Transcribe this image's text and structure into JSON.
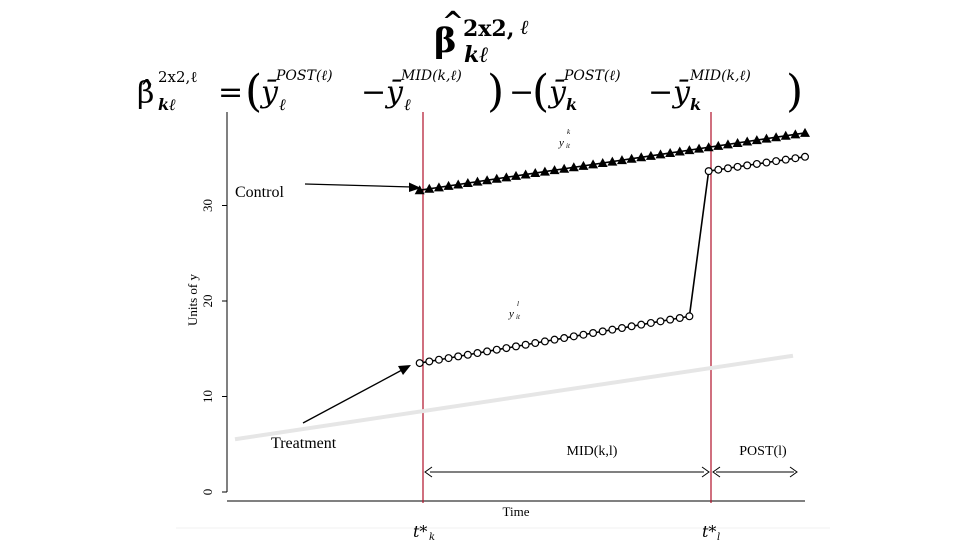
{
  "slide": {
    "title_parts": {
      "beta": "β",
      "hat": "̂",
      "sup": "2x2,",
      "ell": "ℓ",
      "sub": "kℓ"
    },
    "formula": {
      "lhs_beta": "β̂",
      "lhs_sup": "2x2,ℓ",
      "lhs_sub": "kℓ",
      "eq": "=",
      "g1_y": "ȳ",
      "g1_post_sup": "POST(ℓ)",
      "g1_post_sub": "ℓ",
      "minus": "−",
      "g1_mid_sup": "MID(k,ℓ)",
      "g1_mid_sub": "ℓ",
      "g2_post_sup": "POST(ℓ)",
      "g2_post_sub": "k",
      "g2_mid_sup": "MID(k,ℓ)",
      "g2_mid_sub": "k",
      "lparen": "(",
      "rparen": ")"
    },
    "annotations": {
      "control": "Control",
      "treatment": "Treatment",
      "mid": "MID(k,l)",
      "post": "POST(l)",
      "tk_base": "t*",
      "tk_sub": "k",
      "tl_base": "t*",
      "tl_sub": "l"
    },
    "colors": {
      "event_line": "#b0102a",
      "series": "#000000",
      "baseline": "#e6e6e6",
      "axis": "#000000"
    }
  },
  "chart_data": {
    "type": "line",
    "xlabel": "Time",
    "ylabel": "Units of y",
    "ylim": [
      -1,
      42
    ],
    "y_ticks": [
      0,
      10,
      20,
      30
    ],
    "x_ticks": [],
    "grid": false,
    "event_times": {
      "t_k": 20,
      "t_l": 50
    },
    "series_labels": {
      "k": {
        "base": "y",
        "sup": "k",
        "sub": "it"
      },
      "l": {
        "base": "y",
        "sup": "l",
        "sub": "it"
      }
    },
    "series": [
      {
        "name": "k",
        "marker": "triangle",
        "x": [
          20,
          21,
          22,
          23,
          24,
          25,
          26,
          27,
          28,
          29,
          30,
          31,
          32,
          33,
          34,
          35,
          36,
          37,
          38,
          39,
          40,
          41,
          42,
          43,
          44,
          45,
          46,
          47,
          48,
          49,
          50,
          51,
          52,
          53,
          54,
          55,
          56,
          57,
          58,
          59,
          60
        ],
        "values": [
          31.6,
          31.75,
          31.9,
          32.05,
          32.2,
          32.35,
          32.5,
          32.65,
          32.8,
          32.95,
          33.1,
          33.25,
          33.4,
          33.55,
          33.7,
          33.85,
          34.0,
          34.15,
          34.3,
          34.45,
          34.6,
          34.75,
          34.9,
          35.05,
          35.2,
          35.35,
          35.5,
          35.65,
          35.8,
          35.95,
          36.1,
          36.25,
          36.4,
          36.55,
          36.7,
          36.85,
          37.0,
          37.15,
          37.3,
          37.45,
          37.6
        ]
      },
      {
        "name": "l",
        "marker": "circle",
        "x": [
          20,
          21,
          22,
          23,
          24,
          25,
          26,
          27,
          28,
          29,
          30,
          31,
          32,
          33,
          34,
          35,
          36,
          37,
          38,
          39,
          40,
          41,
          42,
          43,
          44,
          45,
          46,
          47,
          48,
          49,
          50,
          51,
          52,
          53,
          54,
          55,
          56,
          57,
          58,
          59,
          60
        ],
        "values": [
          13.5,
          13.67,
          13.85,
          14.02,
          14.2,
          14.37,
          14.55,
          14.72,
          14.9,
          15.07,
          15.25,
          15.42,
          15.6,
          15.77,
          15.95,
          16.12,
          16.3,
          16.47,
          16.65,
          16.82,
          17.0,
          17.17,
          17.35,
          17.52,
          17.7,
          17.87,
          18.05,
          18.22,
          18.4,
          null,
          null,
          null,
          null,
          null,
          null,
          null,
          null,
          null,
          null,
          null,
          null
        ],
        "post_x": [
          50,
          51,
          52,
          53,
          54,
          55,
          56,
          57,
          58,
          59,
          60
        ],
        "post_values": [
          33.6,
          33.75,
          33.9,
          34.05,
          34.2,
          34.35,
          34.5,
          34.65,
          34.8,
          34.95,
          35.1
        ]
      },
      {
        "name": "baseline",
        "marker": "none",
        "x": [
          0,
          60
        ],
        "values": [
          5.0,
          15.0
        ]
      }
    ]
  }
}
